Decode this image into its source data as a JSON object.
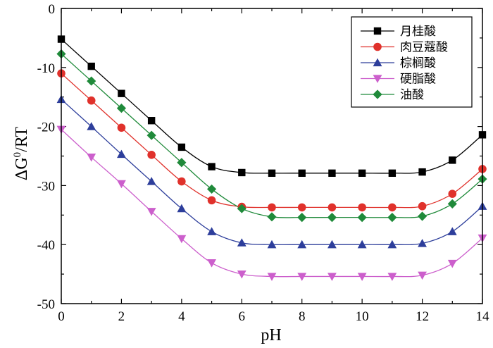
{
  "chart_data": {
    "type": "line",
    "title": "",
    "xlabel": "pH",
    "ylabel_main": "ΔG",
    "ylabel_sup": "0",
    "ylabel_tail": "/RT",
    "xlim": [
      0,
      14
    ],
    "ylim": [
      -50,
      0
    ],
    "x_ticks": [
      0,
      2,
      4,
      6,
      8,
      10,
      12,
      14
    ],
    "y_ticks": [
      0,
      -10,
      -20,
      -30,
      -40,
      -50
    ],
    "x_tick_labels": [
      "0",
      "2",
      "4",
      "6",
      "8",
      "10",
      "12",
      "14"
    ],
    "y_tick_labels": [
      "0",
      "-10",
      "-20",
      "-30",
      "-40",
      "-50"
    ],
    "legend_position": "top-right",
    "x": [
      0,
      1,
      2,
      3,
      4,
      5,
      6,
      7,
      8,
      9,
      10,
      11,
      12,
      13,
      14
    ],
    "series": [
      {
        "name": "月桂酸",
        "marker": "square",
        "color": "#000000",
        "values": [
          -5.2,
          -9.8,
          -14.4,
          -19.0,
          -23.5,
          -26.8,
          -27.8,
          -27.9,
          -27.9,
          -27.9,
          -27.9,
          -27.9,
          -27.7,
          -25.7,
          -21.4
        ]
      },
      {
        "name": "肉豆蔻酸",
        "marker": "circle",
        "color": "#e0312b",
        "values": [
          -11.0,
          -15.6,
          -20.2,
          -24.8,
          -29.3,
          -32.5,
          -33.6,
          -33.7,
          -33.7,
          -33.7,
          -33.7,
          -33.7,
          -33.5,
          -31.4,
          -27.2
        ]
      },
      {
        "name": "棕榈酸",
        "marker": "triangle-up",
        "color": "#2d3e9b",
        "values": [
          -15.4,
          -20.0,
          -24.7,
          -29.3,
          -33.9,
          -37.8,
          -39.7,
          -40.0,
          -40.0,
          -40.0,
          -40.0,
          -40.0,
          -39.8,
          -37.8,
          -33.5
        ]
      },
      {
        "name": "硬脂酸",
        "marker": "triangle-down",
        "color": "#cc5fcc",
        "values": [
          -20.5,
          -25.2,
          -29.7,
          -34.4,
          -39.0,
          -43.1,
          -45.0,
          -45.4,
          -45.4,
          -45.4,
          -45.4,
          -45.4,
          -45.2,
          -43.2,
          -38.9
        ]
      },
      {
        "name": "油酸",
        "marker": "diamond",
        "color": "#1f8a3a",
        "values": [
          -7.7,
          -12.3,
          -16.9,
          -21.5,
          -26.1,
          -30.6,
          -33.9,
          -35.3,
          -35.4,
          -35.4,
          -35.4,
          -35.4,
          -35.2,
          -33.1,
          -28.9
        ]
      }
    ]
  }
}
